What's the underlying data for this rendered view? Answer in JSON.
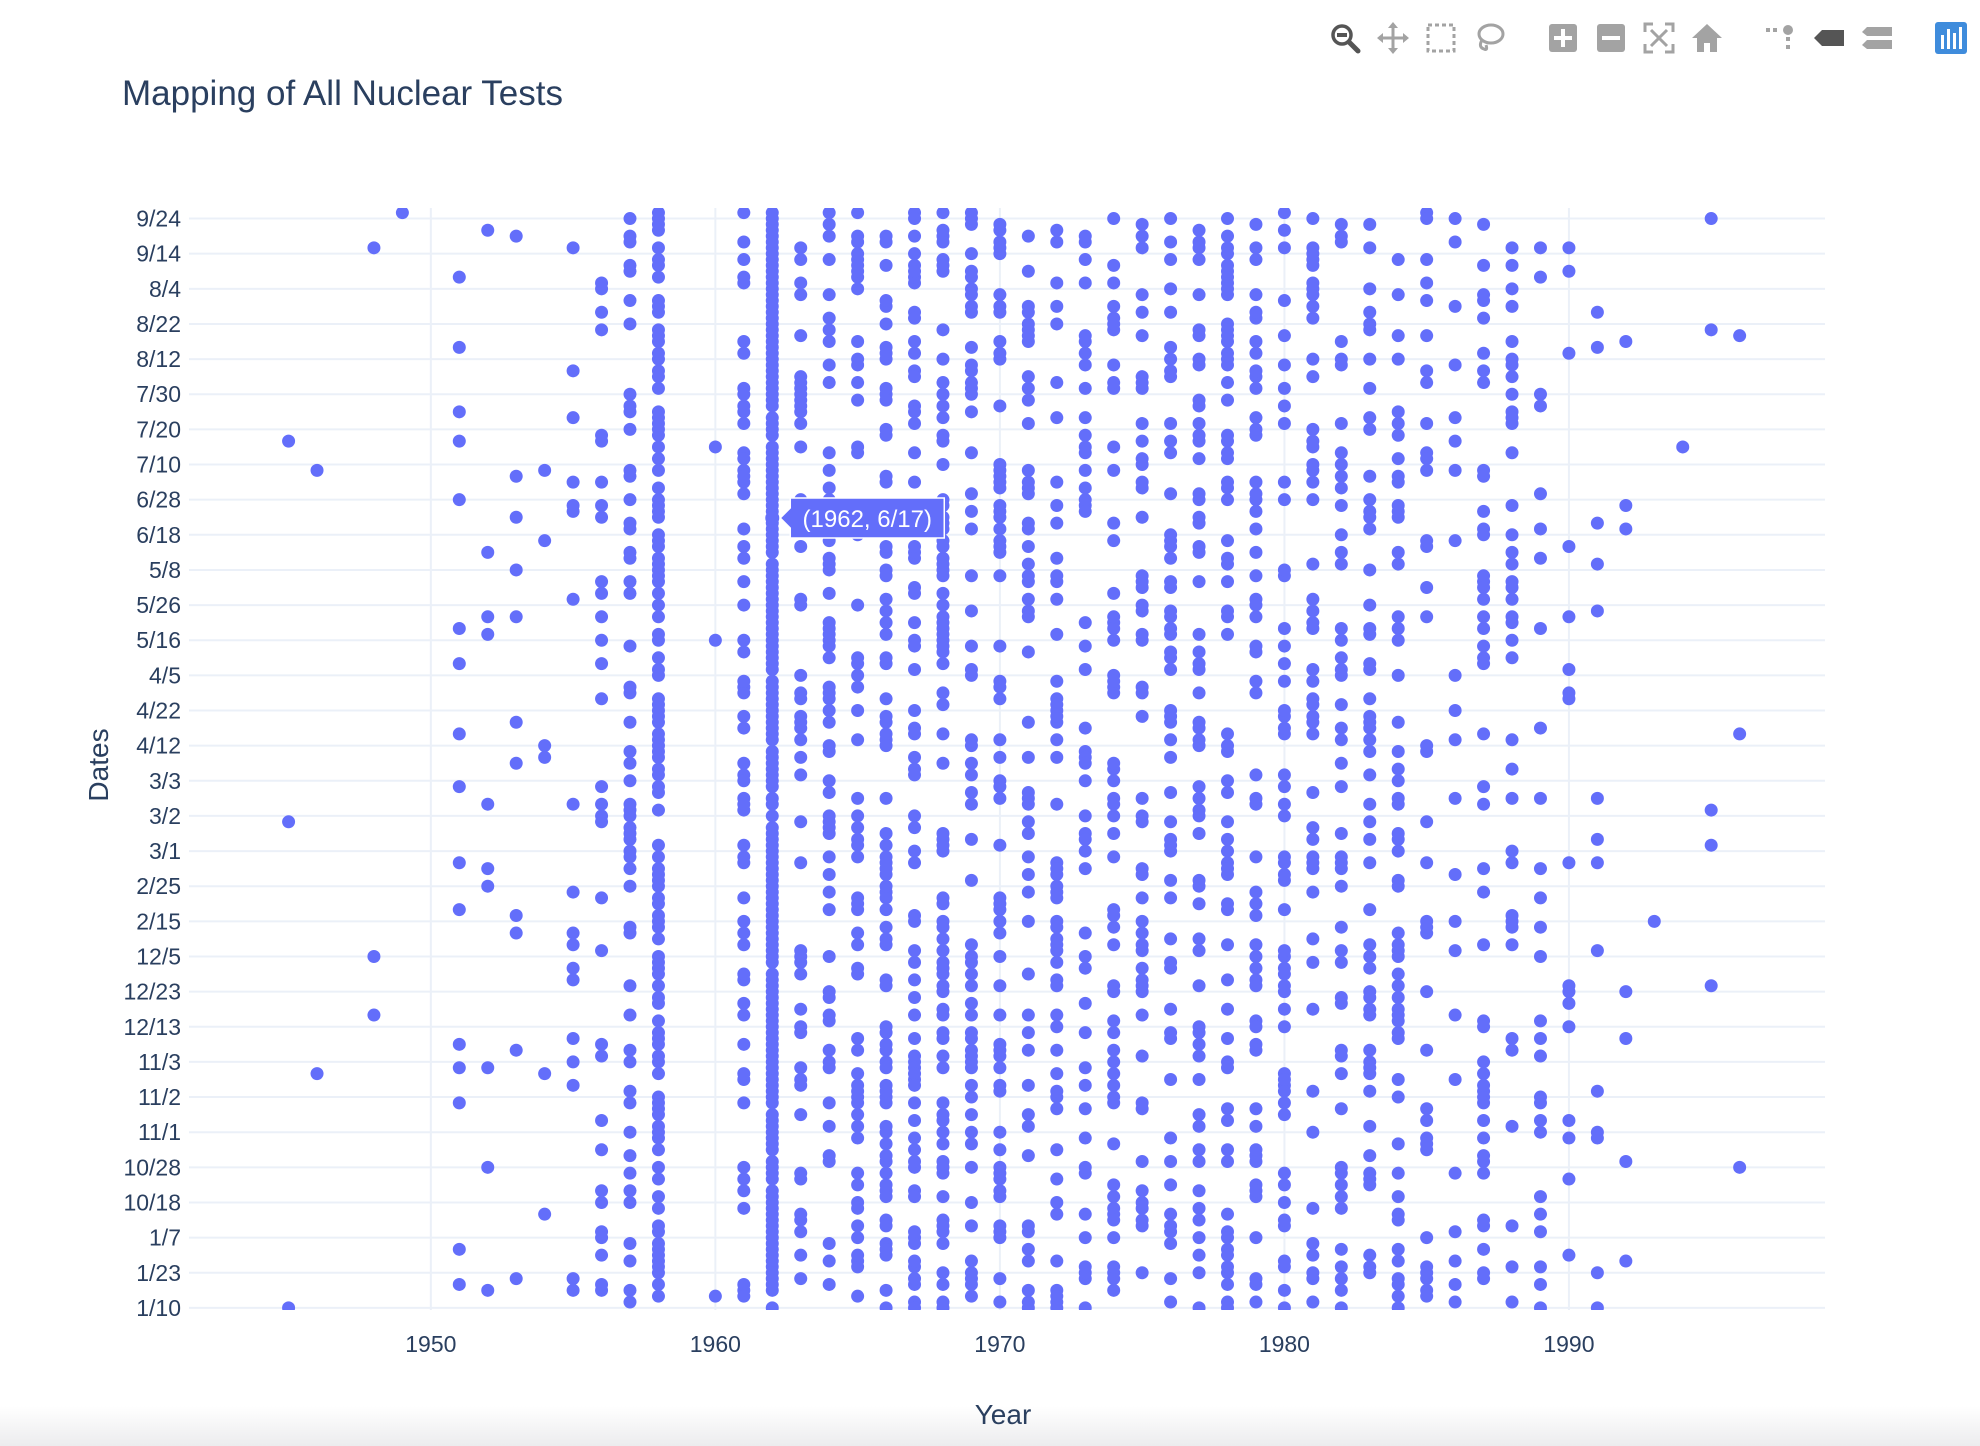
{
  "modebar": {
    "buttons": [
      {
        "name": "zoom-icon",
        "active": true
      },
      {
        "name": "pan-icon"
      },
      {
        "name": "box-select-icon"
      },
      {
        "name": "lasso-select-icon"
      },
      {
        "name": "zoom-in-icon"
      },
      {
        "name": "zoom-out-icon"
      },
      {
        "name": "autoscale-icon"
      },
      {
        "name": "reset-axes-icon"
      },
      {
        "name": "toggle-spike-lines-icon"
      },
      {
        "name": "show-closest-data-icon"
      },
      {
        "name": "compare-data-icon"
      },
      {
        "name": "plotly-logo-icon"
      }
    ],
    "colors": {
      "icon": "#a3a3a3",
      "active": "#555555",
      "logo": "#3f4f75"
    }
  },
  "chart_data": {
    "type": "scatter",
    "title": "Mapping of All Nuclear Tests",
    "xlabel": "Year",
    "ylabel": "Dates",
    "xlim": [
      1941.5,
      1999.0
    ],
    "x_ticks": [
      1950,
      1960,
      1970,
      1980,
      1990
    ],
    "y_axis_type": "category",
    "y_categories": [
      "1/10",
      "1/23",
      "1/7",
      "10/18",
      "10/28",
      "11/1",
      "11/2",
      "11/3",
      "12/13",
      "12/23",
      "12/5",
      "2/15",
      "2/25",
      "3/1",
      "3/2",
      "3/3",
      "4/12",
      "4/22",
      "4/5",
      "5/16",
      "5/26",
      "5/8",
      "6/18",
      "6/28",
      "7/10",
      "7/20",
      "7/30",
      "8/12",
      "8/22",
      "8/4",
      "9/14",
      "9/24"
    ],
    "y_range_fraction": [
      -0.06,
      31.3
    ],
    "grid": true,
    "marker_color": "#636efa",
    "point_counts_by_year": {
      "1945": 3,
      "1946": 2,
      "1948": 3,
      "1949": 1,
      "1951": 16,
      "1952": 10,
      "1953": 11,
      "1954": 6,
      "1955": 18,
      "1956": 32,
      "1957": 55,
      "1958": 116,
      "1960": 3,
      "1961": 59,
      "1962": 178,
      "1963": 50,
      "1964": 60,
      "1965": 58,
      "1966": 76,
      "1967": 76,
      "1968": 79,
      "1969": 61,
      "1970": 63,
      "1971": 53,
      "1972": 57,
      "1973": 48,
      "1974": 57,
      "1975": 52,
      "1976": 56,
      "1977": 59,
      "1978": 66,
      "1979": 58,
      "1980": 54,
      "1981": 50,
      "1982": 49,
      "1983": 55,
      "1984": 57,
      "1985": 37,
      "1986": 22,
      "1987": 46,
      "1988": 40,
      "1989": 27,
      "1990": 18,
      "1991": 14,
      "1992": 8,
      "1993": 1,
      "1994": 2,
      "1995": 5,
      "1996": 3
    },
    "highlight": {
      "year": 1962,
      "date": "6/17",
      "label": "(1962, 6/17)"
    }
  }
}
